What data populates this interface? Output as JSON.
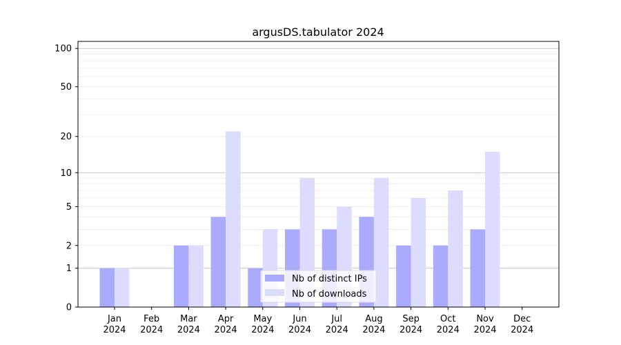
{
  "chart_data": {
    "type": "bar",
    "title": "argusDS.tabulator 2024",
    "xlabel": "",
    "ylabel": "",
    "yscale": "symlog",
    "ylim": [
      0,
      110
    ],
    "grid": true,
    "legend_position": "lower-center",
    "categories": [
      "Jan\n2024",
      "Feb\n2024",
      "Mar\n2024",
      "Apr\n2024",
      "May\n2024",
      "Jun\n2024",
      "Jul\n2024",
      "Aug\n2024",
      "Sep\n2024",
      "Oct\n2024",
      "Nov\n2024",
      "Dec\n2024"
    ],
    "yticks": [
      0,
      1,
      2,
      5,
      10,
      20,
      50,
      100
    ],
    "series": [
      {
        "name": "Nb of distinct IPs",
        "color": "#aaaaff",
        "values": [
          1,
          0,
          2,
          4,
          1,
          3,
          3,
          4,
          2,
          2,
          3,
          0
        ]
      },
      {
        "name": "Nb of downloads",
        "color": "#dcdcff",
        "values": [
          1,
          0,
          2,
          22,
          3,
          9,
          5,
          9,
          6,
          7,
          15,
          0
        ]
      }
    ]
  }
}
